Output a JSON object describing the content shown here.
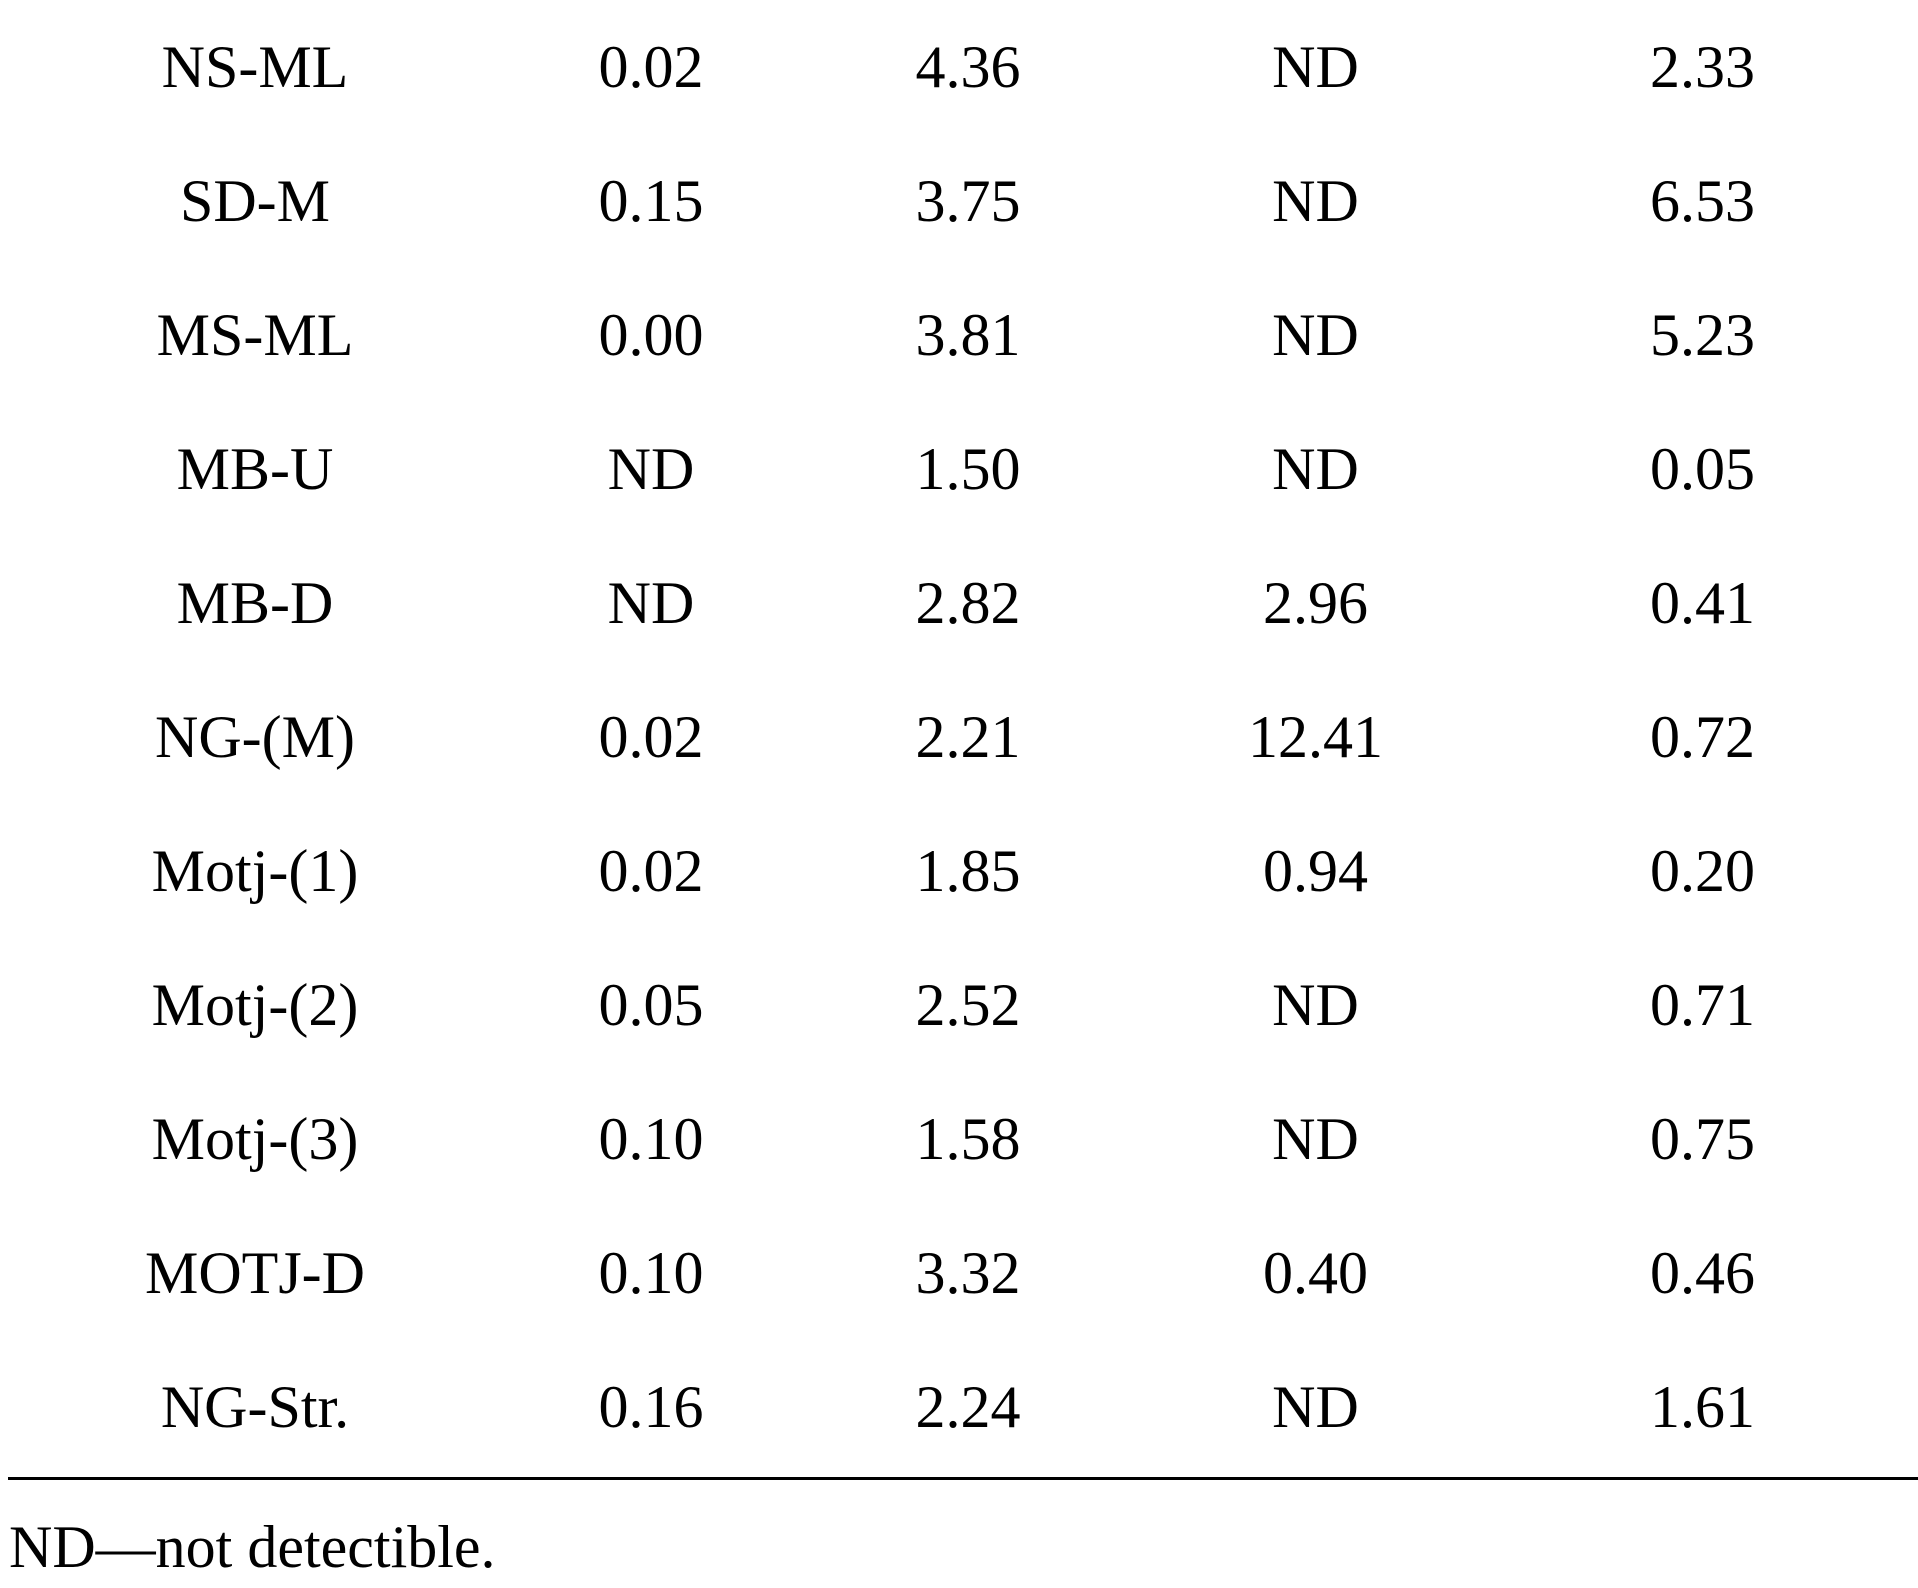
{
  "table": {
    "rows": [
      [
        "NS-ML",
        "0.02",
        "4.36",
        "ND",
        "2.33"
      ],
      [
        "SD-M",
        "0.15",
        "3.75",
        "ND",
        "6.53"
      ],
      [
        "MS-ML",
        "0.00",
        "3.81",
        "ND",
        "5.23"
      ],
      [
        "MB-U",
        "ND",
        "1.50",
        "ND",
        "0.05"
      ],
      [
        "MB-D",
        "ND",
        "2.82",
        "2.96",
        "0.41"
      ],
      [
        "NG-(M)",
        "0.02",
        "2.21",
        "12.41",
        "0.72"
      ],
      [
        "Motj-(1)",
        "0.02",
        "1.85",
        "0.94",
        "0.20"
      ],
      [
        "Motj-(2)",
        "0.05",
        "2.52",
        "ND",
        "0.71"
      ],
      [
        "Motj-(3)",
        "0.10",
        "1.58",
        "ND",
        "0.75"
      ],
      [
        "MOTJ-D",
        "0.10",
        "3.32",
        "0.40",
        "0.46"
      ],
      [
        "NG-Str.",
        "0.16",
        "2.24",
        "ND",
        "1.61"
      ]
    ]
  },
  "footnote": "ND—not detectible."
}
